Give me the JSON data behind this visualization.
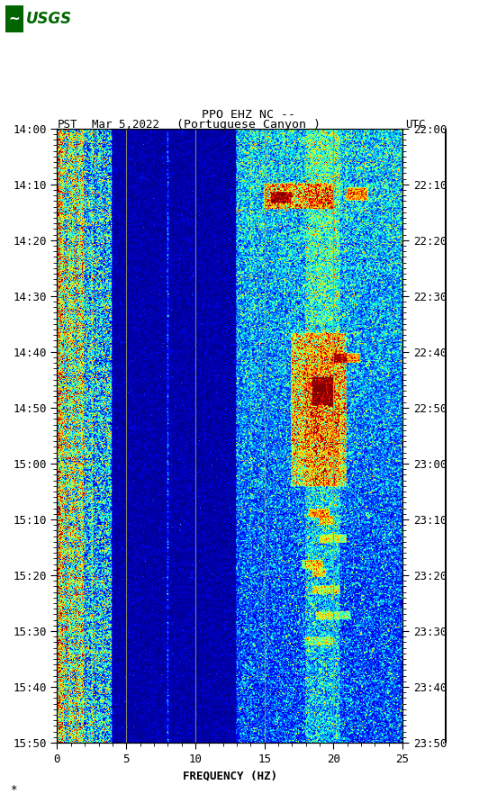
{
  "title_line1": "PPO EHZ NC --",
  "title_line2": "(Portuguese Canyon )",
  "date_label": "Mar 5,2022",
  "left_time_label": "PST",
  "right_time_label": "UTC",
  "left_times": [
    "14:00",
    "14:10",
    "14:20",
    "14:30",
    "14:40",
    "14:50",
    "15:00",
    "15:10",
    "15:20",
    "15:30",
    "15:40",
    "15:50"
  ],
  "right_times": [
    "22:00",
    "22:10",
    "22:20",
    "22:30",
    "22:40",
    "22:50",
    "23:00",
    "23:10",
    "23:20",
    "23:30",
    "23:40",
    "23:50"
  ],
  "freq_min": 0,
  "freq_max": 25,
  "freq_ticks": [
    0,
    5,
    10,
    15,
    20,
    25
  ],
  "freq_label": "FREQUENCY (HZ)",
  "fig_width": 5.52,
  "fig_height": 8.92,
  "colormap": "jet",
  "n_time": 720,
  "n_freq": 420,
  "grid_lines_freq": [
    5,
    10,
    15,
    20
  ],
  "vmin": 0.0,
  "vmax": 1.0
}
